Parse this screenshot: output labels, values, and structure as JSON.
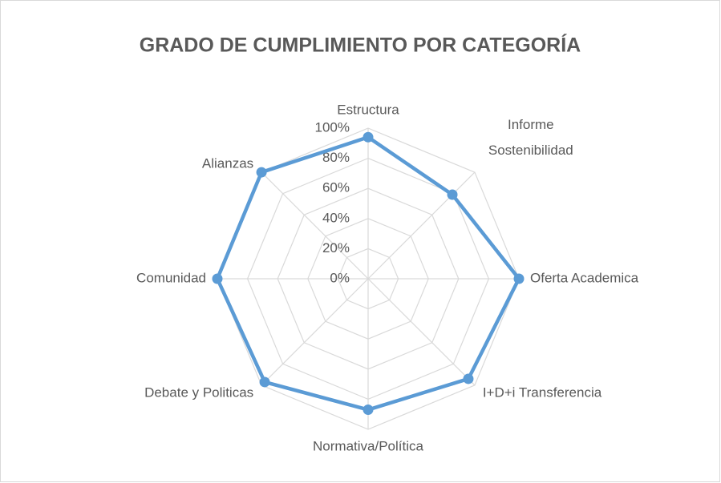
{
  "chart_data": {
    "type": "radar",
    "title": "GRADO DE CUMPLIMIENTO  POR CATEGORÍA",
    "categories": [
      "Estructura",
      "Informe Sostenibilidad",
      "Oferta Academica",
      "I+D+i Transferencia",
      "Normativa/Política",
      "Debate y Politicas",
      "Comunidad",
      "Alianzas"
    ],
    "values": [
      94,
      79,
      100,
      94,
      87,
      97,
      100,
      100
    ],
    "color": "#5b9bd5",
    "ylim": [
      0,
      100
    ],
    "yticks": [
      {
        "value": 0,
        "label": "0%"
      },
      {
        "value": 20,
        "label": "20%"
      },
      {
        "value": 40,
        "label": "40%"
      },
      {
        "value": 60,
        "label": "60%"
      },
      {
        "value": 80,
        "label": "80%"
      },
      {
        "value": 100,
        "label": "100%"
      }
    ],
    "grid": true
  }
}
